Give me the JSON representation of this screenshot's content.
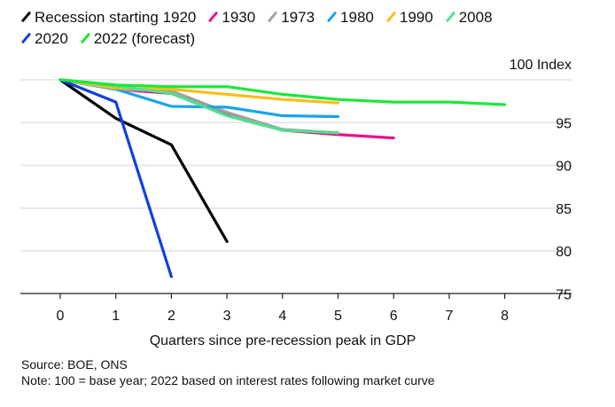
{
  "chart_data": {
    "type": "line",
    "title": "",
    "xlabel": "Quarters since pre-recession peak in GDP",
    "ylabel": "100 Index",
    "x": [
      0,
      1,
      2,
      3,
      4,
      5,
      6,
      7,
      8
    ],
    "x_ticks": [
      "0",
      "1",
      "2",
      "3",
      "4",
      "5",
      "6",
      "7",
      "8"
    ],
    "y_ticks": [
      "75",
      "80",
      "85",
      "90",
      "95"
    ],
    "y_tick_values": [
      75,
      80,
      85,
      90,
      95
    ],
    "ylim": [
      75,
      100
    ],
    "xlim": [
      -0.7,
      9.2
    ],
    "grid": true,
    "y_axis_side": "right",
    "legend_position": "top",
    "series": [
      {
        "name": "Recession starting 1920",
        "color": "#000000",
        "values": [
          100,
          95.5,
          92.4,
          81.1
        ]
      },
      {
        "name": "1930",
        "color": "#e5148c",
        "values": [
          100,
          98.9,
          98.4,
          96.0,
          94.1,
          93.6,
          93.2
        ]
      },
      {
        "name": "1973",
        "color": "#a0a0a0",
        "values": [
          100,
          98.9,
          98.7,
          96.2,
          94.2,
          93.8
        ]
      },
      {
        "name": "1980",
        "color": "#1aa3ec",
        "values": [
          100,
          98.9,
          96.9,
          96.8,
          95.8,
          95.7
        ]
      },
      {
        "name": "1990",
        "color": "#fbbd19",
        "values": [
          100,
          99.0,
          98.9,
          98.3,
          97.7,
          97.3
        ]
      },
      {
        "name": "2008",
        "color": "#4fe08e",
        "values": [
          100,
          99.3,
          98.4,
          95.8,
          94.1,
          93.8
        ]
      },
      {
        "name": "2020",
        "color": "#1040e0",
        "values": [
          100,
          97.4,
          77.0
        ]
      },
      {
        "name": "2022 (forecast)",
        "color": "#1ee63a",
        "values": [
          100,
          99.4,
          99.2,
          99.2,
          98.3,
          97.7,
          97.4,
          97.4,
          97.1
        ]
      }
    ]
  },
  "footer": {
    "source": "Source: BOE, ONS",
    "note": "Note: 100 = base year; 2022 based on interest rates following market curve"
  }
}
